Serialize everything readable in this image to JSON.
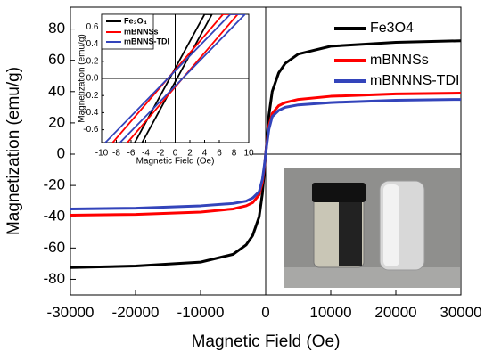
{
  "chart_data": [
    {
      "type": "line",
      "xlabel": "Magnetic Field (Oe)",
      "ylabel": "Magnetization (emu/g)",
      "x": [
        -30000,
        -20000,
        -10000,
        -5000,
        -3000,
        -2000,
        -1000,
        -500,
        -200,
        0,
        200,
        500,
        1000,
        2000,
        3000,
        5000,
        10000,
        20000,
        30000
      ],
      "series": [
        {
          "name": "Fe3O4",
          "color": "#000000",
          "values": [
            -72.5,
            -71.5,
            -69,
            -64,
            -58,
            -52,
            -40,
            -25,
            -10,
            0,
            10,
            25,
            40,
            52,
            58,
            64,
            69,
            71.5,
            72.5
          ]
        },
        {
          "name": "mBNNSs",
          "color": "#ff0000",
          "values": [
            -39,
            -38.5,
            -37,
            -35,
            -33,
            -31,
            -26,
            -18,
            -8,
            0,
            8,
            18,
            26,
            31,
            33,
            35,
            37,
            38.5,
            39
          ]
        },
        {
          "name": "mBNNNS-TDI",
          "color": "#3344bb",
          "values": [
            -35,
            -34.5,
            -33,
            -31.5,
            -30,
            -28,
            -24,
            -16,
            -7,
            0,
            7,
            16,
            24,
            28,
            30,
            31.5,
            33,
            34.5,
            35
          ]
        }
      ],
      "xlim": [
        -30000,
        30000
      ],
      "ylim": [
        -90,
        94
      ],
      "xticks": [
        -30000,
        -20000,
        -10000,
        0,
        10000,
        20000,
        30000
      ],
      "yticks": [
        -80,
        -60,
        -40,
        -20,
        0,
        20,
        40,
        60,
        80
      ]
    },
    {
      "type": "line",
      "xlabel": "Magnetic Field (Oe)",
      "ylabel": "Magnetization (emu/g)",
      "series": [
        {
          "name": "Fe₃O₄",
          "color": "#000000",
          "x": [
            -5.5,
            4.0,
            5.0,
            -4.5
          ],
          "values": [
            -0.75,
            0.75,
            0.75,
            -0.75
          ]
        },
        {
          "name": "mBNNSs",
          "color": "#ff0000",
          "x": [
            -8.5,
            6.5,
            8.5,
            -6.5
          ],
          "values": [
            -0.75,
            0.75,
            0.75,
            -0.75
          ]
        },
        {
          "name": "mBNNS-TDI",
          "color": "#3344bb",
          "x": [
            -9.5,
            7.5,
            9.5,
            -7.5
          ],
          "values": [
            -0.75,
            0.75,
            0.75,
            -0.75
          ]
        }
      ],
      "xlim": [
        -10,
        10
      ],
      "ylim": [
        -0.75,
        0.75
      ],
      "xticks": [
        -10,
        -8,
        -6,
        -4,
        -2,
        0,
        2,
        4,
        6,
        8,
        10
      ],
      "yticks": [
        -0.6,
        -0.4,
        -0.2,
        {
          "value": 0,
          "label": "0.0"
        },
        0.2,
        0.4,
        0.6
      ]
    }
  ]
}
